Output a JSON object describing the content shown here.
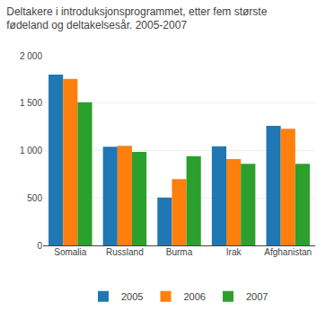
{
  "chart_data": {
    "type": "bar",
    "title": "Deltakere i introduksjonsprogrammet, etter fem største\nfødeland og deltakelsesår. 2005-2007",
    "categories": [
      "Somalia",
      "Russland",
      "Burma",
      "Irak",
      "Afghanistan"
    ],
    "series": [
      {
        "name": "2005",
        "values": [
          1800,
          1040,
          505,
          1045,
          1260
        ]
      },
      {
        "name": "2006",
        "values": [
          1755,
          1050,
          700,
          910,
          1230
        ]
      },
      {
        "name": "2007",
        "values": [
          1510,
          985,
          940,
          860,
          860
        ]
      }
    ],
    "ylim": [
      0,
      2000
    ],
    "yticks": [
      0,
      500,
      {
        "value": 1000,
        "label": "1 000"
      },
      {
        "value": 1500,
        "label": "1 500"
      },
      {
        "value": 2000,
        "label": "2 000"
      }
    ],
    "grid": true,
    "legend": "bottom"
  }
}
